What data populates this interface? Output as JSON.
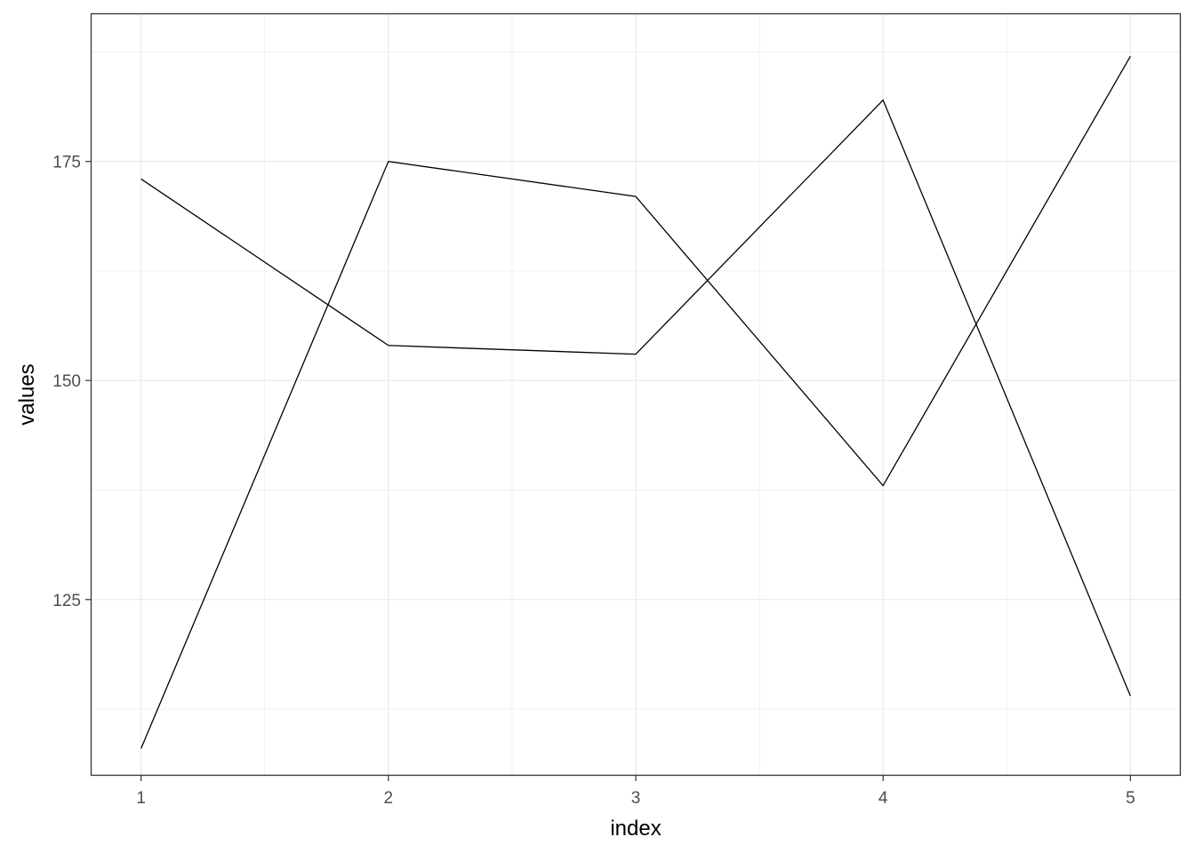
{
  "chart_data": {
    "type": "line",
    "title": "",
    "xlabel": "index",
    "ylabel": "values",
    "x": [
      1,
      2,
      3,
      4,
      5
    ],
    "x_ticks": [
      1,
      2,
      3,
      4,
      5
    ],
    "y_ticks": [
      125,
      150,
      175
    ],
    "xlim": [
      0.8,
      5.2
    ],
    "ylim": [
      105,
      191.8
    ],
    "grid": true,
    "legend": "none",
    "series": [
      {
        "values": [
          173,
          154,
          153,
          182,
          114
        ],
        "color": "#000000"
      },
      {
        "values": [
          108,
          175,
          171,
          138,
          187
        ],
        "color": "#000000"
      }
    ]
  }
}
